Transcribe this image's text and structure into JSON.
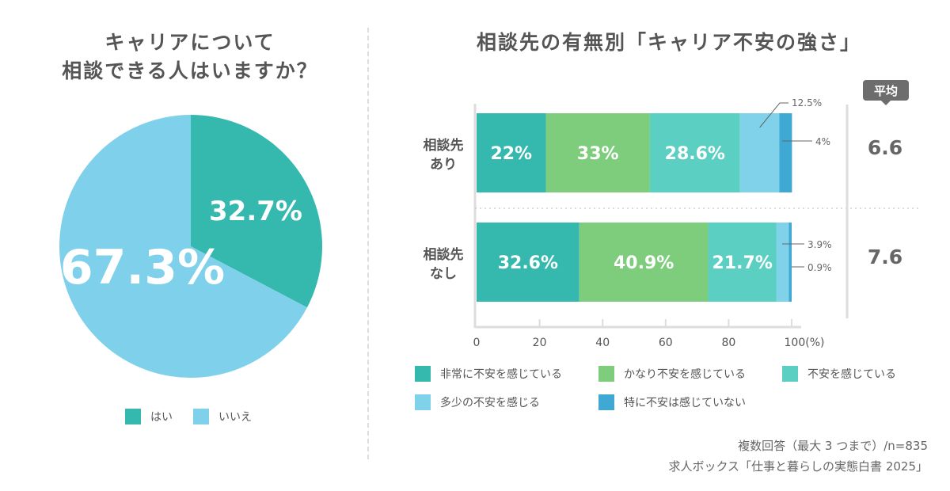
{
  "left": {
    "title_line1": "キャリアについて",
    "title_line2": "相談できる人はいますか？"
  },
  "right": {
    "title": "相談先の有無別「キャリア不安の強さ」",
    "average_label": "平均"
  },
  "footnote": {
    "line1": "複数回答（最大 3 つまで）/n=835",
    "line2": "求人ボックス「仕事と暮らしの実態白書 2025」"
  },
  "chart_data": [
    {
      "type": "pie",
      "title": "キャリアについて相談できる人はいますか？",
      "slices": [
        {
          "label": "はい",
          "value": 32.7,
          "display": "32.7%",
          "color": "#35b8ad"
        },
        {
          "label": "いいえ",
          "value": 67.3,
          "display": "67.3%",
          "color": "#7fd0ea"
        }
      ],
      "legend_placement": "bottom"
    },
    {
      "type": "bar",
      "orientation": "horizontal",
      "stacked": true,
      "title": "相談先の有無別「キャリア不安の強さ」",
      "categories": [
        "相談先あり",
        "相談先なし"
      ],
      "category_lines": [
        [
          "相談先",
          "あり"
        ],
        [
          "相談先",
          "なし"
        ]
      ],
      "series": [
        {
          "name": "非常に不安を感じている",
          "color": "#35b8ad",
          "values": [
            22,
            32.6
          ],
          "labels": [
            "22%",
            "32.6%"
          ]
        },
        {
          "name": "かなり不安を感じている",
          "color": "#7dcd7d",
          "values": [
            33,
            40.9
          ],
          "labels": [
            "33%",
            "40.9%"
          ]
        },
        {
          "name": "不安を感じている",
          "color": "#5ccfc3",
          "values": [
            28.6,
            21.7
          ],
          "labels": [
            "28.6%",
            "21.7%"
          ]
        },
        {
          "name": "多少の不安を感じる",
          "color": "#80d1ea",
          "values": [
            12.5,
            3.9
          ],
          "labels": [
            "12.5%",
            "3.9%"
          ]
        },
        {
          "name": "特に不安は感じていない",
          "color": "#3fa9d3",
          "values": [
            4,
            0.9
          ],
          "labels": [
            "4%",
            "0.9%"
          ]
        }
      ],
      "averages": [
        "6.6",
        "7.6"
      ],
      "xlim": [
        0,
        100
      ],
      "xticks": [
        "0",
        "20",
        "40",
        "60",
        "80",
        "100(%)"
      ],
      "xtick_values": [
        0,
        20,
        40,
        60,
        80,
        100
      ],
      "legend_placement": "bottom",
      "grid": false
    }
  ]
}
